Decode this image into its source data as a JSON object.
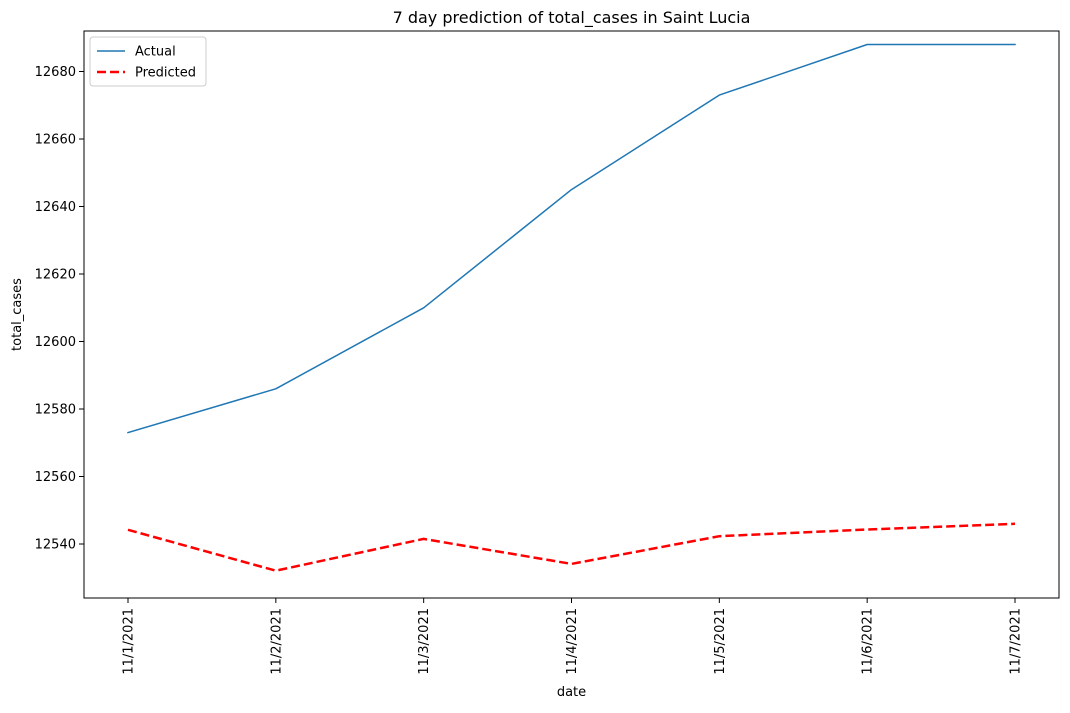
{
  "chart_data": {
    "type": "line",
    "title": "7 day prediction of total_cases in Saint Lucia",
    "xlabel": "date",
    "ylabel": "total_cases",
    "x": [
      "11/1/2021",
      "11/2/2021",
      "11/3/2021",
      "11/4/2021",
      "11/5/2021",
      "11/6/2021",
      "11/7/2021"
    ],
    "ylim": [
      12524,
      12692
    ],
    "yticks": [
      12540,
      12560,
      12580,
      12600,
      12620,
      12640,
      12660,
      12680
    ],
    "grid": false,
    "legend_position": "upper-left",
    "series": [
      {
        "name": "Actual",
        "color": "#1f77b4",
        "style": "solid",
        "values": [
          12573,
          12586,
          12610,
          12645,
          12673,
          12688,
          12688
        ]
      },
      {
        "name": "Predicted",
        "color": "#ff0000",
        "style": "dashed",
        "values": [
          12544.2,
          12532.1,
          12541.5,
          12534.1,
          12542.3,
          12544.3,
          12546.0
        ]
      }
    ]
  }
}
